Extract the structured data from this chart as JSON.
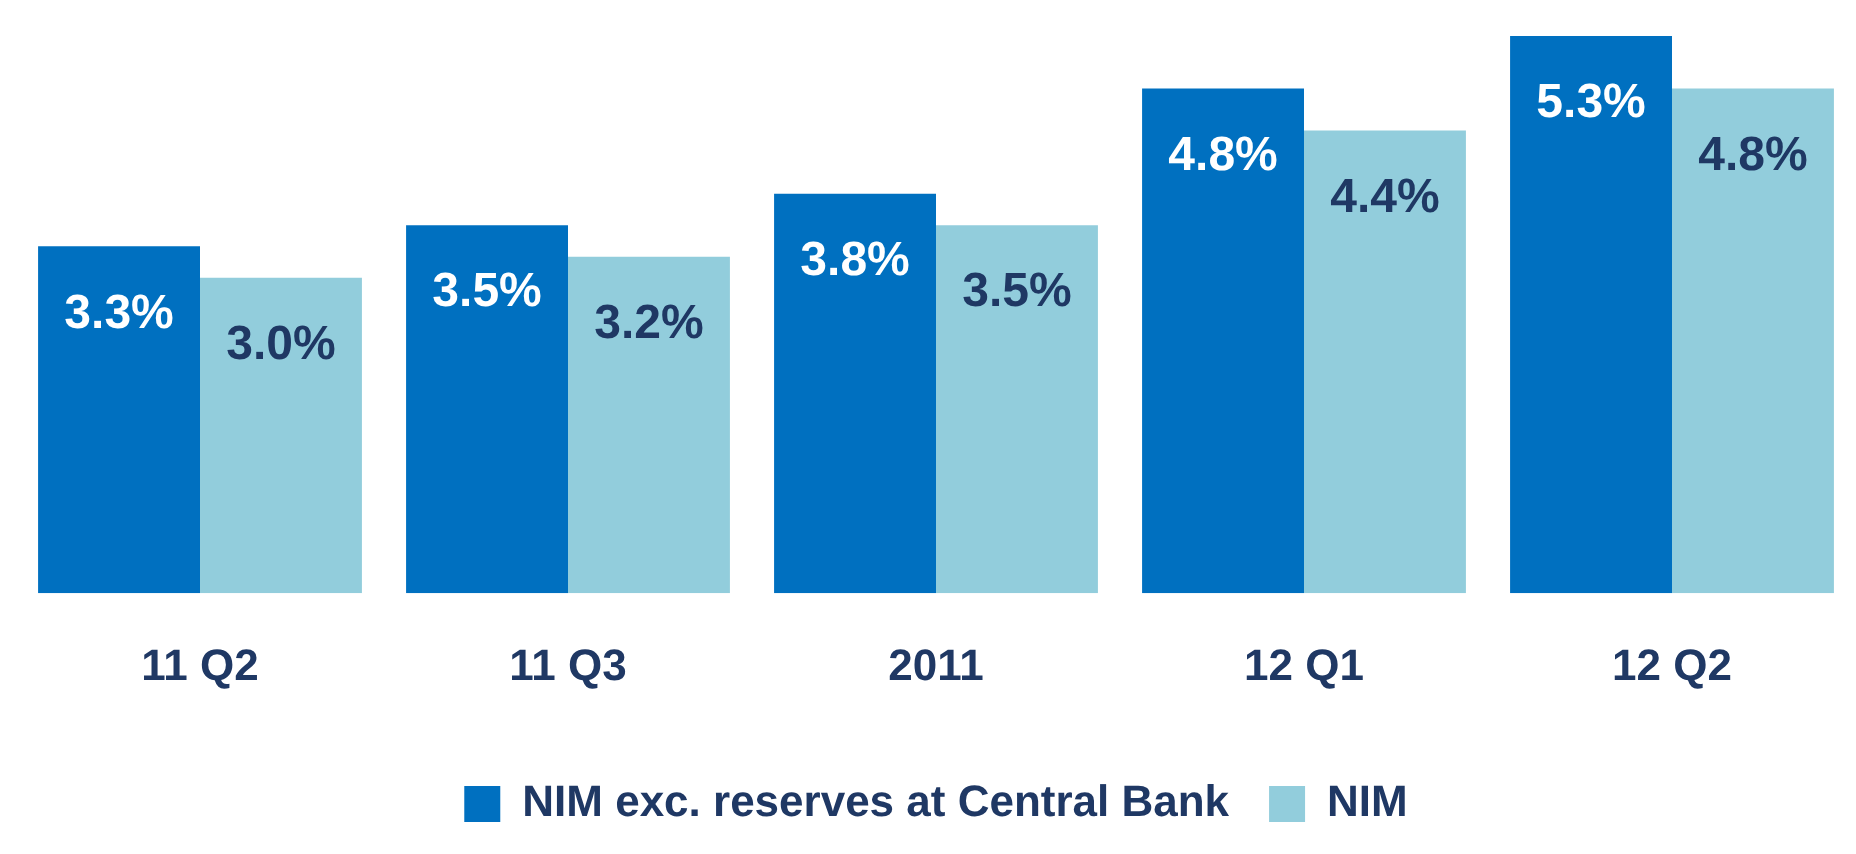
{
  "chart_data": {
    "type": "bar",
    "categories": [
      "11 Q2",
      "11 Q3",
      "2011",
      "12 Q1",
      "12 Q2"
    ],
    "series": [
      {
        "name": "NIM exc. reserves at Central Bank",
        "color": "#0070c0",
        "values": [
          3.3,
          3.5,
          3.8,
          4.8,
          5.3
        ],
        "value_labels": [
          "3.3%",
          "3.5%",
          "3.8%",
          "4.8%",
          "5.3%"
        ]
      },
      {
        "name": "NIM",
        "color": "#92cddc",
        "values": [
          3.0,
          3.2,
          3.5,
          4.4,
          4.8
        ],
        "value_labels": [
          "3.0%",
          "3.2%",
          "3.5%",
          "4.4%",
          "4.8%"
        ]
      }
    ],
    "legend": "bottom",
    "grid": false
  }
}
